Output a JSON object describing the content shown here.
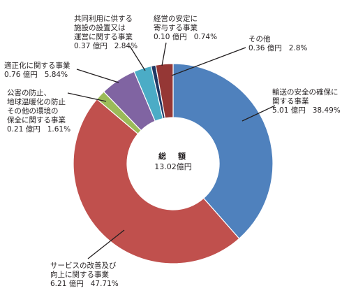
{
  "chart_data": {
    "type": "pie",
    "donut": true,
    "center": {
      "title": "総　額",
      "total": "13.02億円"
    },
    "slices": [
      {
        "lines": [
          "輸送の安全の確保に",
          "関する事業"
        ],
        "amount": "5.01 億円",
        "percent_label": "38.49%",
        "value": 38.49,
        "color": "#4f81bd"
      },
      {
        "lines": [
          "サービスの改善及び",
          "向上に関する事業"
        ],
        "amount": "6.21 億円",
        "percent_label": "47.71%",
        "value": 47.71,
        "color": "#c0504d"
      },
      {
        "lines": [
          "公害の防止、",
          "地球温暖化の防止",
          "その他の環境の",
          "保全に関する事業"
        ],
        "amount": "0.21 億円",
        "percent_label": "1.61%",
        "value": 1.61,
        "color": "#9bbb59"
      },
      {
        "lines": [
          "適正化に関する事業"
        ],
        "amount": "0.76 億円",
        "percent_label": "5.84%",
        "value": 5.84,
        "color": "#8064a2"
      },
      {
        "lines": [
          "共同利用に供する",
          "施設の設置又は",
          "運営に関する事業"
        ],
        "amount": "0.37 億円",
        "percent_label": "2.84%",
        "value": 2.84,
        "color": "#4bacc6"
      },
      {
        "lines": [
          "経営の安定に",
          "寄与する事業"
        ],
        "amount": "0.10 億円",
        "percent_label": "0.74%",
        "value": 0.74,
        "color": "#1f3864"
      },
      {
        "lines": [
          "その他"
        ],
        "amount": "0.36 億円",
        "percent_label": "2.8%",
        "value": 2.8,
        "color": "#953735"
      }
    ]
  }
}
